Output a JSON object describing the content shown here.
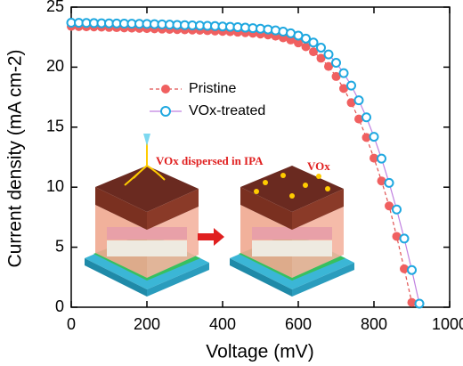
{
  "chart_data": {
    "type": "scatter-line",
    "x_label": "Voltage (mV)",
    "y_label": "Current density (mA cm-2)",
    "xlim": [
      0,
      1000
    ],
    "xticks": [
      0,
      200,
      400,
      600,
      800,
      1000
    ],
    "ylim": [
      0,
      25
    ],
    "yticks": [
      0,
      5,
      10,
      15,
      20,
      25
    ],
    "legend_position": "center-left",
    "annotations": [
      "VOx dispersed in IPA",
      "VOx"
    ],
    "series": [
      {
        "name": "Pristine",
        "color": "#f06060",
        "line_color": "#e05050",
        "marker": "filled",
        "x": [
          0,
          20,
          40,
          60,
          80,
          100,
          120,
          140,
          160,
          180,
          200,
          220,
          240,
          260,
          280,
          300,
          320,
          340,
          360,
          380,
          400,
          420,
          440,
          460,
          480,
          500,
          520,
          540,
          560,
          580,
          600,
          620,
          640,
          660,
          680,
          700,
          720,
          740,
          760,
          780,
          800,
          820,
          840,
          860,
          880,
          900
        ],
        "values": [
          23.4,
          23.38,
          23.36,
          23.35,
          23.33,
          23.31,
          23.29,
          23.27,
          23.25,
          23.23,
          23.21,
          23.19,
          23.17,
          23.15,
          23.13,
          23.11,
          23.09,
          23.07,
          23.04,
          23.01,
          22.98,
          22.95,
          22.91,
          22.87,
          22.82,
          22.76,
          22.68,
          22.58,
          22.44,
          22.26,
          22.02,
          21.7,
          21.28,
          20.74,
          20.06,
          19.22,
          18.22,
          17.04,
          15.68,
          14.14,
          12.42,
          10.52,
          8.44,
          5.9,
          3.2,
          0.4
        ]
      },
      {
        "name": "VOx-treated",
        "color": "#1fa8e0",
        "line_color": "#c080e0",
        "marker": "open",
        "x": [
          0,
          20,
          40,
          60,
          80,
          100,
          120,
          140,
          160,
          180,
          200,
          220,
          240,
          260,
          280,
          300,
          320,
          340,
          360,
          380,
          400,
          420,
          440,
          460,
          480,
          500,
          520,
          540,
          560,
          580,
          600,
          620,
          640,
          660,
          680,
          700,
          720,
          740,
          760,
          780,
          800,
          820,
          840,
          860,
          880,
          900,
          920
        ],
        "values": [
          23.7,
          23.69,
          23.68,
          23.67,
          23.66,
          23.65,
          23.64,
          23.63,
          23.62,
          23.61,
          23.6,
          23.58,
          23.56,
          23.54,
          23.52,
          23.5,
          23.48,
          23.46,
          23.44,
          23.42,
          23.39,
          23.36,
          23.33,
          23.29,
          23.25,
          23.2,
          23.14,
          23.06,
          22.96,
          22.82,
          22.63,
          22.38,
          22.05,
          21.62,
          21.06,
          20.36,
          19.5,
          18.46,
          17.24,
          15.82,
          14.2,
          12.38,
          10.36,
          8.14,
          5.72,
          3.1,
          0.3
        ]
      }
    ]
  }
}
